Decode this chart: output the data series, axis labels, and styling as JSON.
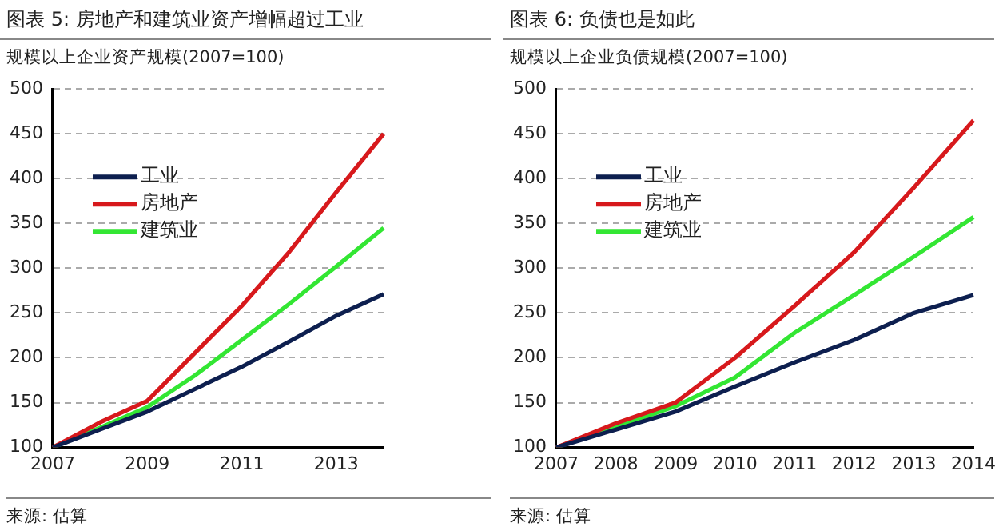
{
  "chart_data": [
    {
      "type": "line",
      "title": "图表 5: 房地产和建筑业资产增幅超过工业",
      "ylabel": "规模以上企业资产规模(2007=100)",
      "categories": [
        "2007",
        null,
        "2009",
        null,
        "2011",
        null,
        "2013",
        null
      ],
      "ylim": [
        100,
        500
      ],
      "yticks": [
        100,
        150,
        200,
        250,
        300,
        350,
        400,
        450,
        500
      ],
      "grid": "y",
      "legend": "top left",
      "marker": "none",
      "line_style": "solid",
      "series": [
        {
          "name": "工业",
          "color": "#0d1f4f",
          "values": [
            100,
            120,
            140,
            165,
            190,
            218,
            247,
            271
          ]
        },
        {
          "name": "房地产",
          "color": "#d7191c",
          "values": [
            100,
            128,
            152,
            205,
            258,
            318,
            385,
            450
          ]
        },
        {
          "name": "建筑业",
          "color": "#33e633",
          "values": [
            100,
            122,
            145,
            180,
            220,
            260,
            302,
            345
          ]
        }
      ],
      "annotations": [
        "来源: 估算"
      ]
    },
    {
      "type": "line",
      "title": "图表 6: 负债也是如此",
      "ylabel": "规模以上企业负债规模(2007=100)",
      "categories": [
        "2007",
        "2008",
        "2009",
        "2010",
        "2011",
        "2012",
        "2013",
        "2014"
      ],
      "ylim": [
        100,
        500
      ],
      "yticks": [
        100,
        150,
        200,
        250,
        300,
        350,
        400,
        450,
        500
      ],
      "grid": "y",
      "legend": "top left",
      "marker": "none",
      "line_style": "solid",
      "series": [
        {
          "name": "工业",
          "color": "#0d1f4f",
          "values": [
            100,
            120,
            140,
            168,
            195,
            220,
            250,
            270
          ]
        },
        {
          "name": "房地产",
          "color": "#d7191c",
          "values": [
            100,
            127,
            150,
            200,
            258,
            318,
            390,
            465
          ]
        },
        {
          "name": "建筑业",
          "color": "#33e633",
          "values": [
            100,
            123,
            146,
            178,
            228,
            270,
            313,
            357
          ]
        }
      ],
      "annotations": [
        "来源: 估算"
      ]
    }
  ]
}
